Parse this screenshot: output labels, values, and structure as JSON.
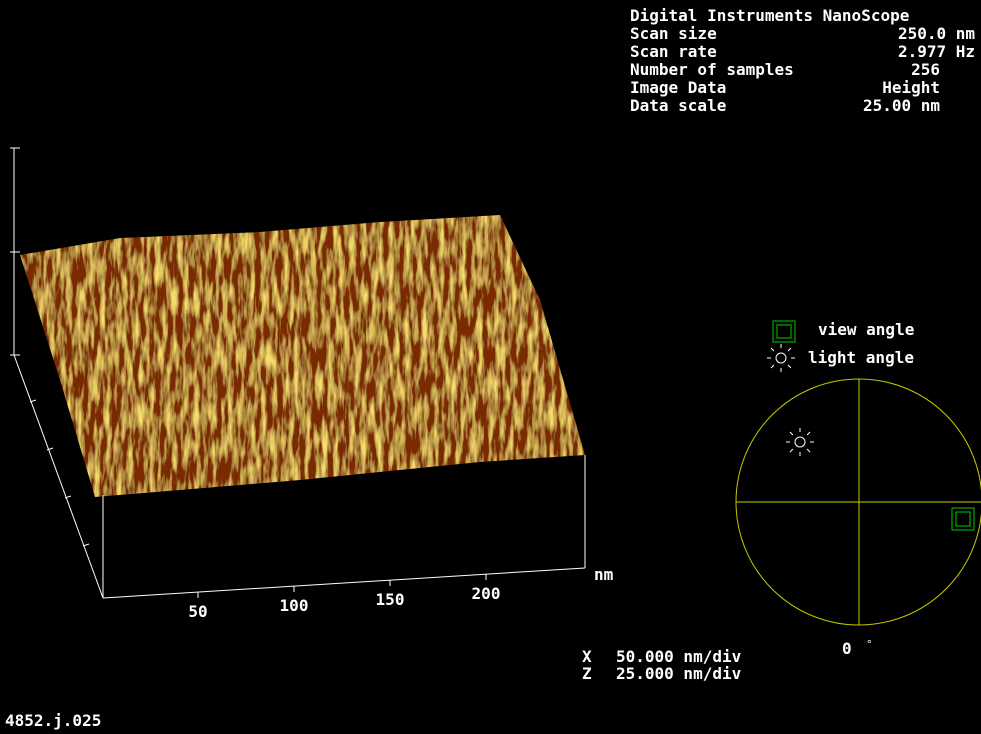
{
  "header": {
    "title": "Digital Instruments NanoScope",
    "params": [
      {
        "label": "Scan size",
        "value": "250.0 nm"
      },
      {
        "label": "Scan rate",
        "value": "2.977 Hz"
      },
      {
        "label": "Number of samples",
        "value": "256"
      },
      {
        "label": "Image Data",
        "value": "Height"
      },
      {
        "label": "Data scale",
        "value": "25.00 nm"
      }
    ]
  },
  "axis": {
    "ticks": [
      "50",
      "100",
      "150",
      "200"
    ],
    "unit": "nm"
  },
  "legend": {
    "view": "view angle",
    "light": "light angle"
  },
  "angle": {
    "value": "0",
    "unit": "°"
  },
  "scale": [
    {
      "axis": "X",
      "value": "50.000 nm/div"
    },
    {
      "axis": "Z",
      "value": "25.000 nm/div"
    }
  ],
  "filename": "4852.j.025"
}
